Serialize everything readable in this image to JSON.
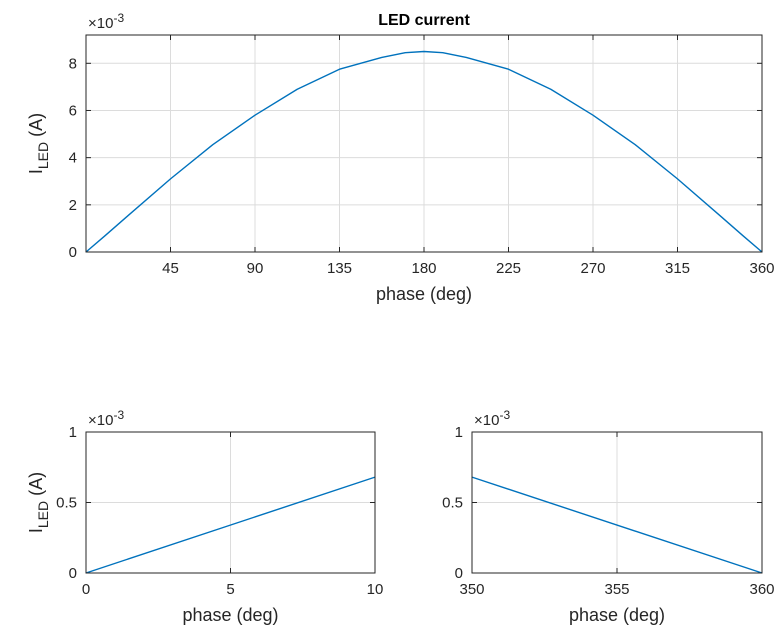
{
  "colors": {
    "line": "#0072BD",
    "axis": "#262626",
    "grid": "#dcdcdc",
    "background": "#ffffff"
  },
  "chart_data": [
    {
      "type": "line",
      "title": "LED current",
      "xlabel": "phase (deg)",
      "ylabel_main": "I",
      "ylabel_sub": "LED",
      "ylabel_unit": "(A)",
      "y_multiplier": "×10",
      "y_multiplier_exp": "-3",
      "xlim": [
        0,
        360
      ],
      "ylim": [
        0,
        9.2
      ],
      "xticks": [
        45,
        90,
        135,
        180,
        225,
        270,
        315,
        360
      ],
      "yticks": [
        0,
        2,
        4,
        6,
        8
      ],
      "grid": true,
      "series": [
        {
          "x": [
            0,
            10,
            22.5,
            45,
            67.5,
            90,
            112.5,
            135,
            157.5,
            170,
            180,
            190,
            202.5,
            225,
            247.5,
            270,
            292.5,
            315,
            337.5,
            350,
            360
          ],
          "y": [
            0.0,
            0.68,
            1.55,
            3.1,
            4.55,
            5.8,
            6.9,
            7.75,
            8.25,
            8.45,
            8.5,
            8.45,
            8.25,
            7.75,
            6.9,
            5.8,
            4.55,
            3.1,
            1.55,
            0.68,
            0.0
          ]
        }
      ]
    },
    {
      "type": "line",
      "title": "",
      "xlabel": "phase (deg)",
      "ylabel_main": "I",
      "ylabel_sub": "LED",
      "ylabel_unit": "(A)",
      "y_multiplier": "×10",
      "y_multiplier_exp": "-3",
      "xlim": [
        0,
        10
      ],
      "ylim": [
        0,
        1
      ],
      "xticks": [
        0,
        5,
        10
      ],
      "yticks": [
        0,
        0.5,
        1
      ],
      "grid": true,
      "series": [
        {
          "x": [
            0,
            10
          ],
          "y": [
            0.0,
            0.68
          ]
        }
      ]
    },
    {
      "type": "line",
      "title": "",
      "xlabel": "phase (deg)",
      "ylabel_main": "",
      "ylabel_sub": "",
      "ylabel_unit": "",
      "y_multiplier": "×10",
      "y_multiplier_exp": "-3",
      "xlim": [
        350,
        360
      ],
      "ylim": [
        0,
        1
      ],
      "xticks": [
        350,
        355,
        360
      ],
      "yticks": [
        0,
        0.5,
        1
      ],
      "grid": true,
      "series": [
        {
          "x": [
            350,
            360
          ],
          "y": [
            0.68,
            0.0
          ]
        }
      ]
    }
  ]
}
